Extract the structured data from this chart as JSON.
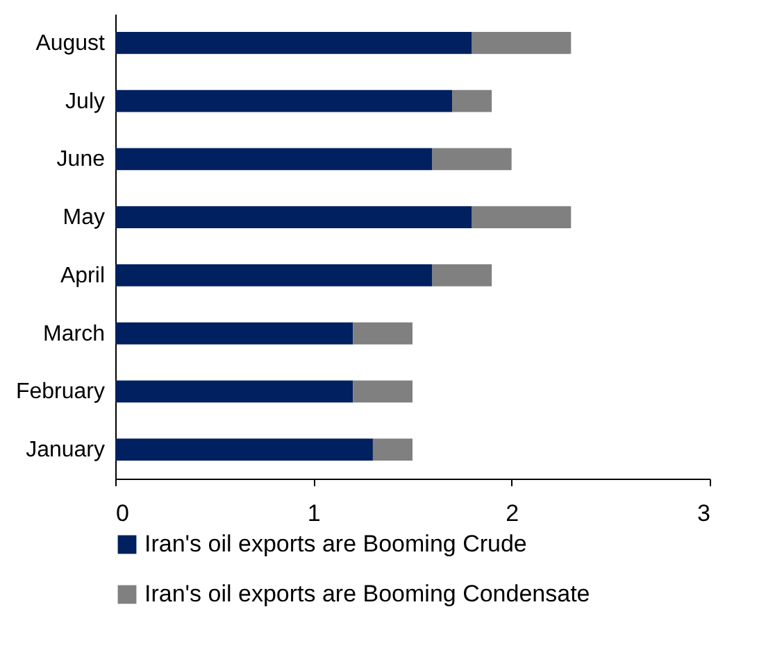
{
  "chart_data": {
    "type": "bar",
    "orientation": "horizontal",
    "stacked": true,
    "categories": [
      "August",
      "July",
      "June",
      "May",
      "April",
      "March",
      "February",
      "January"
    ],
    "series": [
      {
        "name": "Iran's oil exports are Booming Crude",
        "color": "#002060",
        "values": [
          1.8,
          1.7,
          1.6,
          1.8,
          1.6,
          1.2,
          1.2,
          1.3
        ]
      },
      {
        "name": "Iran's oil exports are Booming Condensate",
        "color": "#808080",
        "values": [
          0.5,
          0.2,
          0.4,
          0.5,
          0.3,
          0.3,
          0.3,
          0.2
        ]
      }
    ],
    "xlim": [
      0,
      3
    ],
    "xticks": [
      0,
      1,
      2,
      3
    ],
    "legend": "bottom"
  }
}
